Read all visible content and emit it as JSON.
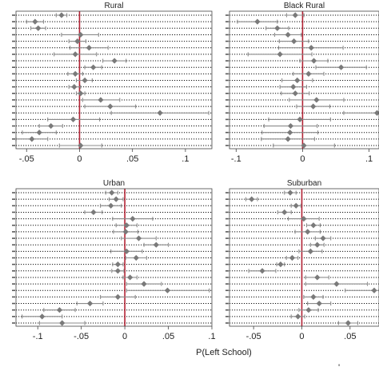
{
  "figure": {
    "xlabel": "P(Left School)",
    "footnote": "'"
  },
  "colors": {
    "marker": "#7a7a7a",
    "ci": "#8c8c8c",
    "zero_line": "#b22234",
    "row_line": "#111111",
    "frame": "#444444",
    "ytick": "#5a5a5a"
  },
  "chart_data": [
    {
      "type": "scatter",
      "title": "Rural",
      "xlim": [
        -0.06,
        0.125
      ],
      "xticks": [
        -0.05,
        0,
        0.05,
        0.1
      ],
      "xticklabels": [
        "-.05",
        "0",
        ".05",
        ".1"
      ],
      "points": [
        {
          "est": -0.017,
          "lo": -0.022,
          "hi": -0.012
        },
        {
          "est": -0.042,
          "lo": -0.05,
          "hi": -0.034
        },
        {
          "est": -0.039,
          "lo": -0.046,
          "hi": -0.032
        },
        {
          "est": 0.001,
          "lo": -0.017,
          "hi": 0.018
        },
        {
          "est": -0.002,
          "lo": -0.01,
          "hi": 0.006
        },
        {
          "est": 0.009,
          "lo": -0.009,
          "hi": 0.027
        },
        {
          "est": -0.004,
          "lo": -0.024,
          "hi": 0.016
        },
        {
          "est": 0.033,
          "lo": 0.022,
          "hi": 0.044
        },
        {
          "est": 0.013,
          "lo": 0.005,
          "hi": 0.021
        },
        {
          "est": -0.004,
          "lo": -0.011,
          "hi": 0.003
        },
        {
          "est": 0.005,
          "lo": -0.003,
          "hi": 0.012
        },
        {
          "est": -0.005,
          "lo": -0.01,
          "hi": 0.001
        },
        {
          "est": 0.001,
          "lo": -0.003,
          "hi": 0.005
        },
        {
          "est": 0.02,
          "lo": 0.003,
          "hi": 0.038
        },
        {
          "est": 0.029,
          "lo": 0.005,
          "hi": 0.053
        },
        {
          "est": 0.076,
          "lo": 0.03,
          "hi": 0.122
        },
        {
          "est": -0.006,
          "lo": -0.03,
          "hi": 0.019
        },
        {
          "est": -0.027,
          "lo": -0.038,
          "hi": -0.016
        },
        {
          "est": -0.038,
          "lo": -0.054,
          "hi": -0.022
        },
        {
          "est": -0.045,
          "lo": -0.06,
          "hi": -0.03
        },
        {
          "est": 0.001,
          "lo": -0.019,
          "hi": 0.021
        }
      ]
    },
    {
      "type": "scatter",
      "title": "Black Rural",
      "xlim": [
        -0.11,
        0.115
      ],
      "xticks": [
        -0.1,
        0,
        0.1
      ],
      "xticklabels": [
        "-.1",
        "0",
        ".1"
      ],
      "points": [
        {
          "est": -0.011,
          "lo": -0.024,
          "hi": 0.002
        },
        {
          "est": -0.068,
          "lo": -0.098,
          "hi": -0.038
        },
        {
          "est": -0.038,
          "lo": -0.055,
          "hi": -0.021
        },
        {
          "est": -0.022,
          "lo": -0.042,
          "hi": -0.002
        },
        {
          "est": -0.013,
          "lo": -0.035,
          "hi": 0.009
        },
        {
          "est": 0.013,
          "lo": -0.036,
          "hi": 0.061
        },
        {
          "est": -0.034,
          "lo": -0.082,
          "hi": 0.014
        },
        {
          "est": 0.017,
          "lo": -0.004,
          "hi": 0.038
        },
        {
          "est": 0.058,
          "lo": 0.02,
          "hi": 0.096
        },
        {
          "est": 0.009,
          "lo": -0.014,
          "hi": 0.032
        },
        {
          "est": -0.008,
          "lo": -0.031,
          "hi": 0.015
        },
        {
          "est": -0.014,
          "lo": -0.034,
          "hi": 0.006
        },
        {
          "est": -0.011,
          "lo": -0.032,
          "hi": 0.01
        },
        {
          "est": 0.021,
          "lo": -0.02,
          "hi": 0.062
        },
        {
          "est": 0.016,
          "lo": -0.009,
          "hi": 0.041
        },
        {
          "est": 0.112,
          "lo": 0.062,
          "hi": 0.115
        },
        {
          "est": -0.004,
          "lo": -0.051,
          "hi": 0.042
        },
        {
          "est": -0.018,
          "lo": -0.058,
          "hi": 0.022
        },
        {
          "est": -0.019,
          "lo": -0.061,
          "hi": 0.023
        },
        {
          "est": -0.022,
          "lo": -0.062,
          "hi": 0.018
        },
        {
          "est": 0.002,
          "lo": -0.044,
          "hi": 0.048
        }
      ]
    },
    {
      "type": "scatter",
      "title": "Urban",
      "xlim": [
        -0.125,
        0.1
      ],
      "xticks": [
        -0.1,
        -0.05,
        0,
        0.05,
        0.1
      ],
      "xticklabels": [
        "-.1",
        "-.05",
        "0",
        ".05",
        ".1"
      ],
      "points": [
        {
          "est": -0.015,
          "lo": -0.022,
          "hi": -0.008
        },
        {
          "est": -0.01,
          "lo": -0.018,
          "hi": -0.002
        },
        {
          "est": -0.016,
          "lo": -0.028,
          "hi": -0.004
        },
        {
          "est": -0.036,
          "lo": -0.046,
          "hi": -0.026
        },
        {
          "est": 0.009,
          "lo": -0.014,
          "hi": 0.032
        },
        {
          "est": 0.002,
          "lo": -0.01,
          "hi": 0.014
        },
        {
          "est": 0.001,
          "lo": -0.013,
          "hi": 0.015
        },
        {
          "est": 0.016,
          "lo": -0.004,
          "hi": 0.036
        },
        {
          "est": 0.036,
          "lo": 0.022,
          "hi": 0.05
        },
        {
          "est": 0.002,
          "lo": -0.016,
          "hi": 0.02
        },
        {
          "est": 0.013,
          "lo": 0.001,
          "hi": 0.025
        },
        {
          "est": -0.008,
          "lo": -0.014,
          "hi": -0.002
        },
        {
          "est": -0.008,
          "lo": -0.015,
          "hi": -0.001
        },
        {
          "est": 0.006,
          "lo": -0.002,
          "hi": 0.014
        },
        {
          "est": 0.022,
          "lo": 0.002,
          "hi": 0.042
        },
        {
          "est": 0.049,
          "lo": 0.002,
          "hi": 0.097
        },
        {
          "est": -0.008,
          "lo": -0.028,
          "hi": 0.012
        },
        {
          "est": -0.04,
          "lo": -0.055,
          "hi": -0.025
        },
        {
          "est": -0.075,
          "lo": -0.093,
          "hi": -0.057
        },
        {
          "est": -0.095,
          "lo": -0.118,
          "hi": -0.072
        },
        {
          "est": -0.072,
          "lo": -0.098,
          "hi": -0.046
        }
      ]
    },
    {
      "type": "scatter",
      "title": "Suburban",
      "xlim": [
        -0.075,
        0.08
      ],
      "xticks": [
        -0.05,
        0,
        0.05
      ],
      "xticklabels": [
        "-.05",
        "0",
        ".05"
      ],
      "points": [
        {
          "est": -0.012,
          "lo": -0.018,
          "hi": -0.006
        },
        {
          "est": -0.052,
          "lo": -0.058,
          "hi": -0.046
        },
        {
          "est": -0.006,
          "lo": -0.011,
          "hi": -0.001
        },
        {
          "est": -0.018,
          "lo": -0.025,
          "hi": -0.011
        },
        {
          "est": 0.002,
          "lo": -0.014,
          "hi": 0.018
        },
        {
          "est": 0.012,
          "lo": 0.005,
          "hi": 0.019
        },
        {
          "est": 0.006,
          "lo": -0.007,
          "hi": 0.019
        },
        {
          "est": 0.022,
          "lo": 0.014,
          "hi": 0.03
        },
        {
          "est": 0.016,
          "lo": 0.009,
          "hi": 0.023
        },
        {
          "est": 0.009,
          "lo": -0.003,
          "hi": 0.021
        },
        {
          "est": -0.01,
          "lo": -0.016,
          "hi": -0.004
        },
        {
          "est": -0.022,
          "lo": -0.026,
          "hi": -0.018
        },
        {
          "est": -0.041,
          "lo": -0.055,
          "hi": -0.027
        },
        {
          "est": 0.016,
          "lo": 0.004,
          "hi": 0.028
        },
        {
          "est": 0.036,
          "lo": 0.004,
          "hi": 0.068
        },
        {
          "est": 0.075,
          "lo": 0.045,
          "hi": 0.08
        },
        {
          "est": 0.012,
          "lo": 0.002,
          "hi": 0.022
        },
        {
          "est": 0.018,
          "lo": 0.006,
          "hi": 0.03
        },
        {
          "est": 0.007,
          "lo": -0.003,
          "hi": 0.017
        },
        {
          "est": -0.004,
          "lo": -0.011,
          "hi": 0.003
        },
        {
          "est": 0.048,
          "lo": 0.038,
          "hi": 0.058
        }
      ]
    }
  ]
}
